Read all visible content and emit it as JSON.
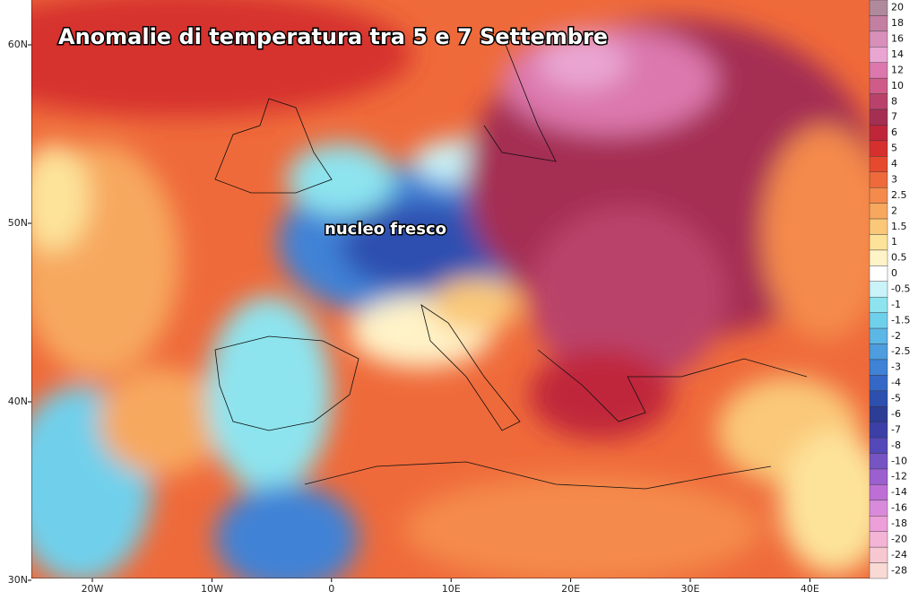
{
  "title": "Anomalie di temperatura tra 5 e 7 Settembre",
  "annotation": "nucleo fresco",
  "lat_labels": [
    "60N",
    "50N",
    "40N",
    "30N"
  ],
  "lon_labels": [
    "20W",
    "10W",
    "0",
    "10E",
    "20E",
    "30E",
    "40E"
  ],
  "legend": [
    {
      "value": 20,
      "color": "#b08a9c"
    },
    {
      "value": 18,
      "color": "#c27fa2"
    },
    {
      "value": 16,
      "color": "#d890bb"
    },
    {
      "value": 14,
      "color": "#e9a6d2"
    },
    {
      "value": 12,
      "color": "#dc78ad"
    },
    {
      "value": 10,
      "color": "#cf5c88"
    },
    {
      "value": 8,
      "color": "#b9426b"
    },
    {
      "value": 7,
      "color": "#a52f52"
    },
    {
      "value": 6,
      "color": "#c0263a"
    },
    {
      "value": 5,
      "color": "#d6302e"
    },
    {
      "value": 4,
      "color": "#e54a2e"
    },
    {
      "value": 3,
      "color": "#ee6a3b"
    },
    {
      "value": 2.5,
      "color": "#f48a4b"
    },
    {
      "value": 2,
      "color": "#f7a85e"
    },
    {
      "value": 1.5,
      "color": "#fac878"
    },
    {
      "value": 1,
      "color": "#fde39a"
    },
    {
      "value": 0.5,
      "color": "#fff3c8"
    },
    {
      "value": 0,
      "color": "#ffffff"
    },
    {
      "value": -0.5,
      "color": "#c9f3f8"
    },
    {
      "value": -1,
      "color": "#8de4ef"
    },
    {
      "value": -1.5,
      "color": "#6fd0ec"
    },
    {
      "value": -2,
      "color": "#5cb6e6"
    },
    {
      "value": -2.5,
      "color": "#4d9ddf"
    },
    {
      "value": -3,
      "color": "#3f82d6"
    },
    {
      "value": -4,
      "color": "#3568c6"
    },
    {
      "value": -5,
      "color": "#2d4fb0"
    },
    {
      "value": -6,
      "color": "#2c3d96"
    },
    {
      "value": -7,
      "color": "#3b3fa6"
    },
    {
      "value": -8,
      "color": "#5548b8"
    },
    {
      "value": -10,
      "color": "#7754c4"
    },
    {
      "value": -12,
      "color": "#9c5fcf"
    },
    {
      "value": -14,
      "color": "#bd6fd6"
    },
    {
      "value": -16,
      "color": "#d98bdb"
    },
    {
      "value": -18,
      "color": "#ec9fd8"
    },
    {
      "value": -20,
      "color": "#f3b4d5"
    },
    {
      "value": -24,
      "color": "#f7c8d2"
    },
    {
      "value": -28,
      "color": "#f9d9d4"
    }
  ]
}
